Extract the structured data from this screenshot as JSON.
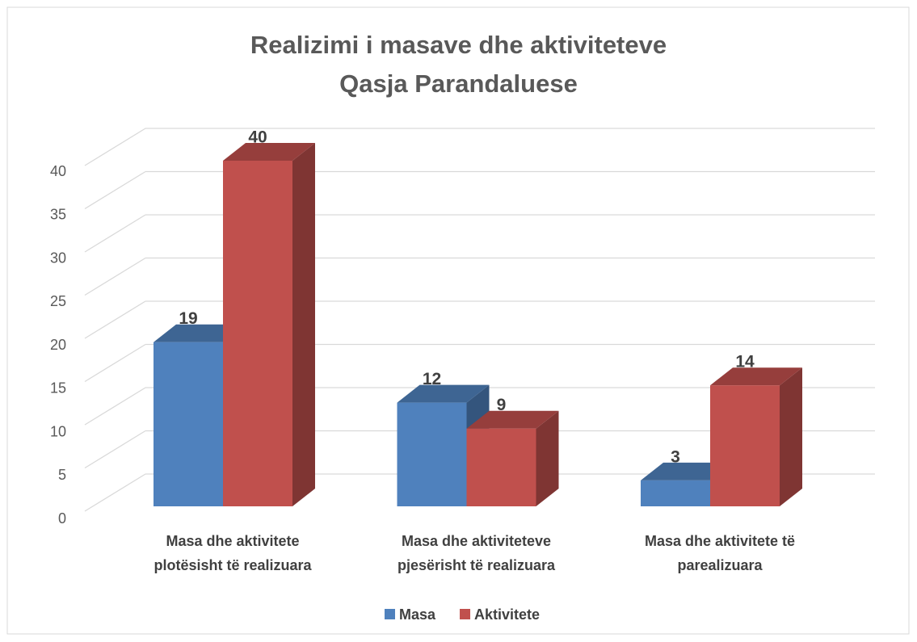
{
  "chart_data": {
    "type": "bar3d",
    "title": "Realizimi i masave dhe aktiviteteve\nQasja Parandaluese",
    "categories": [
      "Masa dhe aktivitete\nplotësisht të realizuara",
      "Masa dhe aktiviteteve\npjesërisht të realizuara",
      "Masa  dhe aktivitete të\nparealizuara"
    ],
    "series": [
      {
        "name": "Masa",
        "color": "#4f81bd",
        "values": [
          19,
          12,
          3
        ]
      },
      {
        "name": "Aktivitete",
        "color": "#c0504d",
        "values": [
          40,
          9,
          14
        ]
      }
    ],
    "ylim": [
      0,
      40
    ],
    "yticks": [
      0,
      5,
      10,
      15,
      20,
      25,
      30,
      35,
      40
    ],
    "grid": true,
    "legend": "bottom"
  }
}
